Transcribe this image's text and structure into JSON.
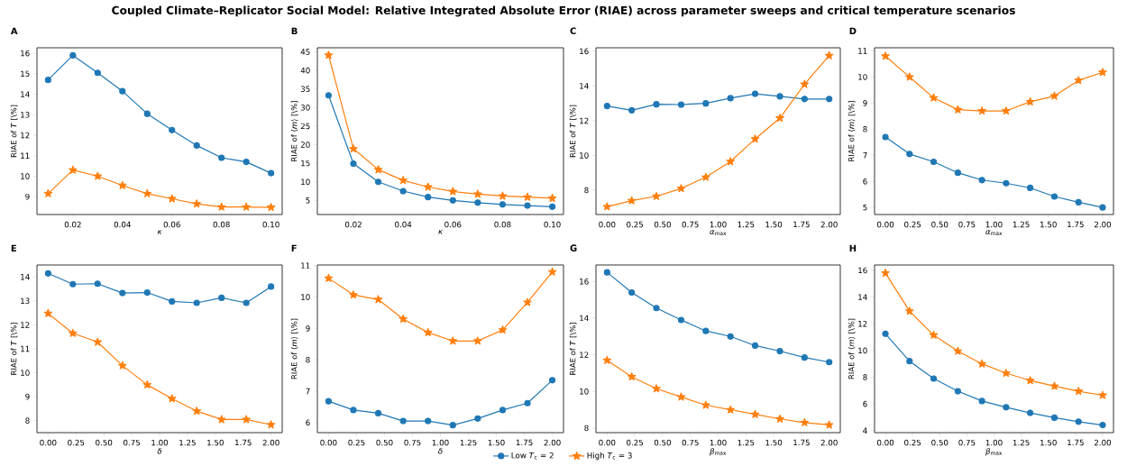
{
  "chart_data": [
    {
      "type": "line",
      "title": "A",
      "annotations": [
        "Coupled Climate–Replicator Social Model: Relative Integrated Absolute Error (RIAE) across parameter sweeps and critical temperature scenarios"
      ],
      "xlabel": "*κ*",
      "ylabel": "RIAE of *T* [\\%]",
      "x": [
        0.01,
        0.02,
        0.03,
        0.04,
        0.05,
        0.06,
        0.07,
        0.08,
        0.09,
        0.1
      ],
      "series": [
        {
          "color": "#1f77b4",
          "marker": "circle",
          "values": [
            14.7,
            15.9,
            15.05,
            14.15,
            13.05,
            12.25,
            11.5,
            10.9,
            10.7,
            10.15
          ]
        },
        {
          "color": "#ff7f0e",
          "marker": "star",
          "values": [
            9.15,
            10.3,
            10.0,
            9.55,
            9.15,
            8.9,
            8.65,
            8.5,
            8.5,
            8.48
          ]
        }
      ],
      "xlim": [
        0.0055,
        0.1045
      ],
      "ylim": [
        8.13,
        16.27
      ],
      "xticks": [
        0.02,
        0.04,
        0.06,
        0.08,
        {
          "value": 0.1,
          "label": "0.10"
        }
      ],
      "yticks": [
        9,
        10,
        11,
        12,
        13,
        14,
        15,
        16
      ]
    },
    {
      "type": "line",
      "title": "B",
      "xlabel": "*κ*",
      "ylabel": "RIAE of ⟨*m*⟩ [\\%]",
      "x": [
        0.01,
        0.02,
        0.03,
        0.04,
        0.05,
        0.06,
        0.07,
        0.08,
        0.09,
        0.1
      ],
      "series": [
        {
          "color": "#1f77b4",
          "marker": "circle",
          "values": [
            33.3,
            14.9,
            10.0,
            7.5,
            5.9,
            5.0,
            4.4,
            3.9,
            3.6,
            3.3
          ]
        },
        {
          "color": "#ff7f0e",
          "marker": "star",
          "values": [
            44.1,
            18.9,
            13.3,
            10.4,
            8.6,
            7.4,
            6.7,
            6.2,
            5.9,
            5.6
          ]
        }
      ],
      "xlim": [
        0.0055,
        0.1045
      ],
      "ylim": [
        1.2,
        46.1
      ],
      "xticks": [
        0.02,
        0.04,
        0.06,
        0.08,
        {
          "value": 0.1,
          "label": "0.10"
        }
      ],
      "yticks": [
        5,
        10,
        15,
        20,
        25,
        30,
        35,
        40,
        45
      ]
    },
    {
      "type": "line",
      "title": "C",
      "xlabel": "*α*$_{max}$",
      "ylabel": "RIAE of *T* [\\%]",
      "x": [
        0,
        0.222,
        0.444,
        0.667,
        0.889,
        1.111,
        1.333,
        1.556,
        1.778,
        2.0
      ],
      "series": [
        {
          "color": "#1f77b4",
          "marker": "circle",
          "values": [
            12.85,
            12.6,
            12.95,
            12.93,
            13.0,
            13.3,
            13.55,
            13.4,
            13.25,
            13.25
          ]
        },
        {
          "color": "#ff7f0e",
          "marker": "star",
          "values": [
            7.05,
            7.4,
            7.65,
            8.1,
            8.75,
            9.65,
            10.95,
            12.15,
            14.1,
            15.75
          ]
        }
      ],
      "xlim": [
        -0.1,
        2.1
      ],
      "ylim": [
        6.6,
        16.2
      ],
      "xticks": [
        {
          "value": 0,
          "label": "0.00"
        },
        {
          "value": 0.25,
          "label": "0.25"
        },
        {
          "value": 0.5,
          "label": "0.50"
        },
        {
          "value": 0.75,
          "label": "0.75"
        },
        {
          "value": 1,
          "label": "1.00"
        },
        {
          "value": 1.25,
          "label": "1.25"
        },
        {
          "value": 1.5,
          "label": "1.50"
        },
        {
          "value": 1.75,
          "label": "1.75"
        },
        {
          "value": 2,
          "label": "2.00"
        }
      ],
      "yticks": [
        8,
        10,
        12,
        14,
        16
      ]
    },
    {
      "type": "line",
      "title": "D",
      "xlabel": "*α*$_{max}$",
      "ylabel": "RIAE of ⟨*m*⟩ [\\%]",
      "x": [
        0,
        0.222,
        0.444,
        0.667,
        0.889,
        1.111,
        1.333,
        1.556,
        1.778,
        2.0
      ],
      "series": [
        {
          "color": "#1f77b4",
          "marker": "circle",
          "values": [
            7.7,
            7.05,
            6.75,
            6.33,
            6.05,
            5.93,
            5.75,
            5.42,
            5.2,
            5.0
          ]
        },
        {
          "color": "#ff7f0e",
          "marker": "star",
          "values": [
            10.8,
            10.0,
            9.2,
            8.75,
            8.7,
            8.7,
            9.05,
            9.27,
            9.87,
            10.18
          ]
        }
      ],
      "xlim": [
        -0.1,
        2.1
      ],
      "ylim": [
        4.73,
        11.12
      ],
      "xticks": [
        {
          "value": 0,
          "label": "0.00"
        },
        {
          "value": 0.25,
          "label": "0.25"
        },
        {
          "value": 0.5,
          "label": "0.50"
        },
        {
          "value": 0.75,
          "label": "0.75"
        },
        {
          "value": 1,
          "label": "1.00"
        },
        {
          "value": 1.25,
          "label": "1.25"
        },
        {
          "value": 1.5,
          "label": "1.50"
        },
        {
          "value": 1.75,
          "label": "1.75"
        },
        {
          "value": 2,
          "label": "2.00"
        }
      ],
      "yticks": [
        5,
        6,
        7,
        8,
        9,
        10,
        11
      ]
    },
    {
      "type": "line",
      "title": "E",
      "xlabel": "*δ*",
      "ylabel": "RIAE of *T* [\\%]",
      "x": [
        0,
        0.222,
        0.444,
        0.667,
        0.889,
        1.111,
        1.333,
        1.556,
        1.778,
        2.0
      ],
      "series": [
        {
          "color": "#1f77b4",
          "marker": "circle",
          "values": [
            14.15,
            13.7,
            13.72,
            13.33,
            13.35,
            12.98,
            12.92,
            13.13,
            12.92,
            13.6
          ]
        },
        {
          "color": "#ff7f0e",
          "marker": "star",
          "values": [
            12.48,
            11.65,
            11.28,
            10.3,
            9.5,
            8.92,
            8.4,
            8.05,
            8.05,
            7.83
          ]
        }
      ],
      "xlim": [
        -0.1,
        2.1
      ],
      "ylim": [
        7.5,
        14.5
      ],
      "xticks": [
        {
          "value": 0,
          "label": "0.00"
        },
        {
          "value": 0.25,
          "label": "0.25"
        },
        {
          "value": 0.5,
          "label": "0.50"
        },
        {
          "value": 0.75,
          "label": "0.75"
        },
        {
          "value": 1,
          "label": "1.00"
        },
        {
          "value": 1.25,
          "label": "1.25"
        },
        {
          "value": 1.5,
          "label": "1.50"
        },
        {
          "value": 1.75,
          "label": "1.75"
        },
        {
          "value": 2,
          "label": "2.00"
        }
      ],
      "yticks": [
        8,
        9,
        10,
        11,
        12,
        13,
        14
      ]
    },
    {
      "type": "line",
      "title": "F",
      "xlabel": "*δ*",
      "ylabel": "RIAE of ⟨*m*⟩ [\\%]",
      "legend": "bottom",
      "x": [
        0,
        0.222,
        0.444,
        0.667,
        0.889,
        1.111,
        1.333,
        1.556,
        1.778,
        2.0
      ],
      "series": [
        {
          "name": "Low *T*$_{c}$ = 2",
          "color": "#1f77b4",
          "marker": "circle",
          "values": [
            6.68,
            6.4,
            6.3,
            6.05,
            6.05,
            5.92,
            6.13,
            6.4,
            6.62,
            7.35
          ]
        },
        {
          "name": "High *T*$_{c}$ = 3",
          "color": "#ff7f0e",
          "marker": "star",
          "values": [
            10.6,
            10.07,
            9.92,
            9.3,
            8.87,
            8.6,
            8.6,
            8.95,
            9.83,
            10.8
          ]
        }
      ],
      "xlim": [
        -0.1,
        2.1
      ],
      "ylim": [
        5.68,
        11.02
      ],
      "xticks": [
        {
          "value": 0,
          "label": "0.00"
        },
        {
          "value": 0.25,
          "label": "0.25"
        },
        {
          "value": 0.5,
          "label": "0.50"
        },
        {
          "value": 0.75,
          "label": "0.75"
        },
        {
          "value": 1,
          "label": "1.00"
        },
        {
          "value": 1.25,
          "label": "1.25"
        },
        {
          "value": 1.5,
          "label": "1.50"
        },
        {
          "value": 1.75,
          "label": "1.75"
        },
        {
          "value": 2,
          "label": "2.00"
        }
      ],
      "yticks": [
        6,
        7,
        8,
        9,
        10,
        11
      ]
    },
    {
      "type": "line",
      "title": "G",
      "xlabel": "*β*$_{max}$",
      "ylabel": "RIAE of *T* [\\%]",
      "x": [
        0,
        0.222,
        0.444,
        0.667,
        0.889,
        1.111,
        1.333,
        1.556,
        1.778,
        2.0
      ],
      "series": [
        {
          "color": "#1f77b4",
          "marker": "circle",
          "values": [
            16.5,
            15.4,
            14.55,
            13.9,
            13.3,
            13.0,
            12.5,
            12.2,
            11.85,
            11.6
          ]
        },
        {
          "color": "#ff7f0e",
          "marker": "star",
          "values": [
            11.7,
            10.8,
            10.15,
            9.7,
            9.25,
            9.0,
            8.75,
            8.5,
            8.3,
            8.17
          ]
        }
      ],
      "xlim": [
        -0.1,
        2.1
      ],
      "ylim": [
        7.75,
        16.9
      ],
      "xticks": [
        {
          "value": 0,
          "label": "0.00"
        },
        {
          "value": 0.25,
          "label": "0.25"
        },
        {
          "value": 0.5,
          "label": "0.50"
        },
        {
          "value": 0.75,
          "label": "0.75"
        },
        {
          "value": 1,
          "label": "1.00"
        },
        {
          "value": 1.25,
          "label": "1.25"
        },
        {
          "value": 1.5,
          "label": "1.50"
        },
        {
          "value": 1.75,
          "label": "1.75"
        },
        {
          "value": 2,
          "label": "2.00"
        }
      ],
      "yticks": [
        8,
        10,
        12,
        14,
        16
      ]
    },
    {
      "type": "line",
      "title": "H",
      "xlabel": "*β*$_{max}$",
      "ylabel": "RIAE of ⟨*m*⟩ [\\%]",
      "x": [
        0,
        0.222,
        0.444,
        0.667,
        0.889,
        1.111,
        1.333,
        1.556,
        1.778,
        2.0
      ],
      "series": [
        {
          "color": "#1f77b4",
          "marker": "circle",
          "values": [
            11.25,
            9.2,
            7.9,
            6.95,
            6.22,
            5.75,
            5.33,
            4.97,
            4.67,
            4.42
          ]
        },
        {
          "color": "#ff7f0e",
          "marker": "star",
          "values": [
            15.8,
            12.95,
            11.15,
            9.95,
            9.0,
            8.3,
            7.75,
            7.33,
            6.95,
            6.65
          ]
        }
      ],
      "xlim": [
        -0.1,
        2.1
      ],
      "ylim": [
        3.85,
        16.4
      ],
      "xticks": [
        {
          "value": 0,
          "label": "0.00"
        },
        {
          "value": 0.25,
          "label": "0.25"
        },
        {
          "value": 0.5,
          "label": "0.50"
        },
        {
          "value": 0.75,
          "label": "0.75"
        },
        {
          "value": 1,
          "label": "1.00"
        },
        {
          "value": 1.25,
          "label": "1.25"
        },
        {
          "value": 1.5,
          "label": "1.50"
        },
        {
          "value": 1.75,
          "label": "1.75"
        },
        {
          "value": 2,
          "label": "2.00"
        }
      ],
      "yticks": [
        4,
        6,
        8,
        10,
        12,
        14,
        16
      ]
    }
  ]
}
